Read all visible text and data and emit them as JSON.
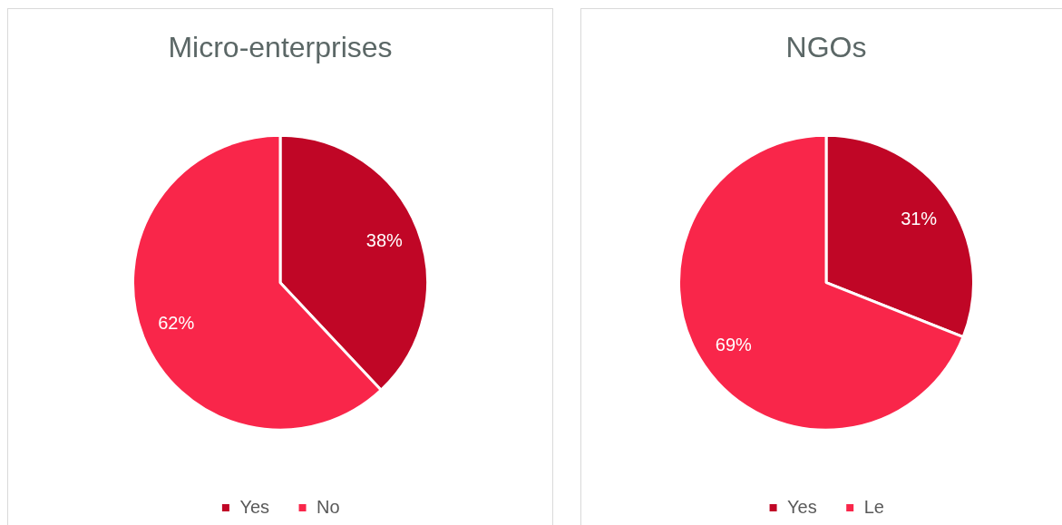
{
  "chart_data": [
    {
      "type": "pie",
      "title": "Micro-enterprises",
      "categories": [
        "Yes",
        "No"
      ],
      "values": [
        38,
        62
      ],
      "colors": [
        "#c00626",
        "#f9264a"
      ],
      "value_labels": [
        "38%",
        "62%"
      ],
      "legend": "bottom"
    },
    {
      "type": "pie",
      "title": "NGOs",
      "categories": [
        "Yes",
        "Le"
      ],
      "values": [
        31,
        69
      ],
      "colors": [
        "#c00626",
        "#f9264a"
      ],
      "value_labels": [
        "31%",
        "69%"
      ],
      "legend": "bottom"
    }
  ]
}
